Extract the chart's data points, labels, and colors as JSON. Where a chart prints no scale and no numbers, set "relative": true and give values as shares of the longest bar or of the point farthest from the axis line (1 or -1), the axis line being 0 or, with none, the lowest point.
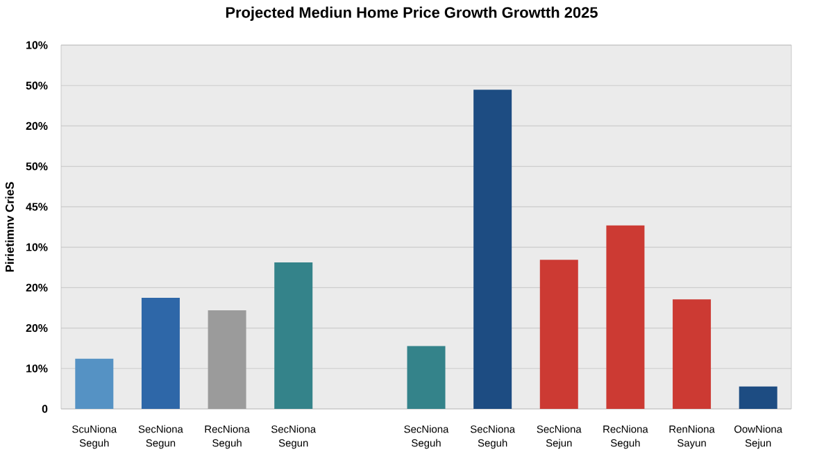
{
  "chart_data": {
    "type": "bar",
    "title": "Projected Mediun Home Price Growth Growtth 2025",
    "ylabel": "Pirietimnv CrieS",
    "relative": true,
    "categories": [
      "ScuNiona Seguh",
      "SecNiona Segun",
      "RecNiona Seguh",
      "SecNiona Segun",
      null,
      "SecNiona Seguh",
      "SecNiona Seguh",
      "SecNiona Sejun",
      "RecNiona Seguh",
      "RenNiona Sayun",
      "OowNiona Sejun"
    ],
    "values": [
      0.157,
      0.348,
      0.309,
      0.459,
      null,
      0.197,
      1,
      0.467,
      0.575,
      0.343,
      0.07
    ],
    "colors": [
      "#5592c4",
      "#2e67a8",
      "#9b9b9b",
      "#34838a",
      "#34838a",
      "#34838a",
      "#1d4c82",
      "#cc3a33",
      "#cc3a33",
      "#cc3a33",
      "#1d4c82"
    ],
    "annotations": [
      "0",
      "10%",
      "20%",
      "20%",
      "10%",
      "45%",
      "50%",
      "20%",
      "50%",
      "10%"
    ],
    "grid": "y"
  }
}
